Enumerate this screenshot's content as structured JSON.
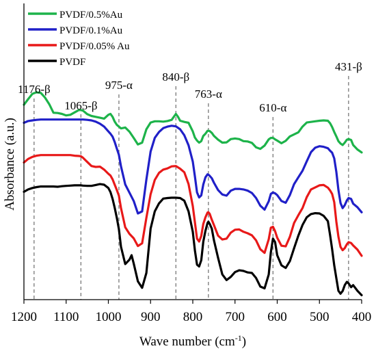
{
  "chart_data": {
    "type": "line",
    "title": "",
    "xlabel": "Wave number (cm",
    "xlabel_sup": "-1",
    "xlabel_close": ")",
    "ylabel": "Absorbance (a.u.)",
    "xlim": [
      1200,
      400
    ],
    "x_reversed": true,
    "x_ticks": [
      1200,
      1100,
      1000,
      900,
      800,
      700,
      600,
      500,
      400
    ],
    "ylim": [
      0,
      1
    ],
    "y_ticks_shown": false,
    "grid": false,
    "legend_position": "top-left",
    "legend_order": [
      "PVDF/0.5%Au",
      "PVDF/0.1%Au",
      "PVDF/0.05% Au",
      "PVDF"
    ],
    "peaks": [
      {
        "x": 1176,
        "label": "1176-β"
      },
      {
        "x": 1065,
        "label": "1065-β"
      },
      {
        "x": 975,
        "label": "975-α"
      },
      {
        "x": 840,
        "label": "840-β"
      },
      {
        "x": 763,
        "label": "763-α"
      },
      {
        "x": 610,
        "label": "610-α"
      },
      {
        "x": 431,
        "label": "431-β"
      }
    ],
    "series": [
      {
        "name": "PVDF/0.5%Au",
        "color": "#1db34a",
        "x": [
          1200,
          1190,
          1180,
          1170,
          1160,
          1150,
          1140,
          1130,
          1120,
          1110,
          1100,
          1090,
          1080,
          1070,
          1065,
          1060,
          1050,
          1040,
          1030,
          1020,
          1010,
          1000,
          995,
          990,
          985,
          980,
          975,
          970,
          960,
          950,
          940,
          930,
          920,
          910,
          900,
          890,
          880,
          870,
          860,
          850,
          845,
          840,
          835,
          830,
          820,
          810,
          800,
          795,
          790,
          785,
          780,
          775,
          770,
          765,
          763,
          760,
          755,
          750,
          740,
          730,
          720,
          710,
          700,
          690,
          680,
          670,
          660,
          650,
          640,
          630,
          620,
          615,
          610,
          605,
          600,
          590,
          580,
          570,
          560,
          550,
          540,
          530,
          520,
          510,
          500,
          490,
          480,
          475,
          470,
          465,
          460,
          455,
          450,
          445,
          440,
          435,
          431,
          425,
          420,
          410,
          400
        ],
        "y": [
          0.658,
          0.677,
          0.695,
          0.7,
          0.698,
          0.682,
          0.66,
          0.631,
          0.63,
          0.627,
          0.622,
          0.624,
          0.632,
          0.64,
          0.64,
          0.638,
          0.626,
          0.62,
          0.617,
          0.614,
          0.611,
          0.624,
          0.627,
          0.617,
          0.601,
          0.59,
          0.584,
          0.578,
          0.581,
          0.567,
          0.546,
          0.524,
          0.53,
          0.575,
          0.598,
          0.602,
          0.602,
          0.601,
          0.603,
          0.607,
          0.617,
          0.627,
          0.617,
          0.604,
          0.6,
          0.597,
          0.568,
          0.547,
          0.537,
          0.53,
          0.535,
          0.553,
          0.56,
          0.57,
          0.57,
          0.569,
          0.563,
          0.553,
          0.54,
          0.53,
          0.531,
          0.542,
          0.544,
          0.542,
          0.535,
          0.534,
          0.529,
          0.514,
          0.509,
          0.52,
          0.541,
          0.546,
          0.546,
          0.541,
          0.537,
          0.528,
          0.536,
          0.551,
          0.558,
          0.565,
          0.584,
          0.598,
          0.6,
          0.602,
          0.604,
          0.605,
          0.604,
          0.596,
          0.583,
          0.566,
          0.551,
          0.535,
          0.527,
          0.522,
          0.53,
          0.54,
          0.542,
          0.539,
          0.522,
          0.507,
          0.497
        ]
      },
      {
        "name": "PVDF/0.1%Au",
        "color": "#2020c8",
        "x": [
          1200,
          1190,
          1180,
          1170,
          1160,
          1150,
          1140,
          1130,
          1120,
          1110,
          1100,
          1090,
          1080,
          1070,
          1065,
          1060,
          1050,
          1040,
          1030,
          1020,
          1010,
          1000,
          995,
          990,
          985,
          980,
          975,
          970,
          960,
          950,
          940,
          930,
          920,
          910,
          900,
          890,
          880,
          870,
          860,
          850,
          840,
          830,
          820,
          810,
          800,
          795,
          790,
          785,
          780,
          775,
          770,
          765,
          763,
          760,
          755,
          750,
          740,
          730,
          720,
          710,
          700,
          690,
          680,
          670,
          660,
          650,
          640,
          630,
          620,
          615,
          610,
          605,
          600,
          590,
          580,
          570,
          560,
          550,
          540,
          530,
          520,
          510,
          500,
          490,
          480,
          475,
          470,
          465,
          460,
          455,
          450,
          445,
          440,
          435,
          431,
          425,
          420,
          410,
          400
        ],
        "y": [
          0.597,
          0.603,
          0.605,
          0.607,
          0.608,
          0.608,
          0.608,
          0.608,
          0.608,
          0.608,
          0.608,
          0.608,
          0.608,
          0.608,
          0.608,
          0.608,
          0.607,
          0.605,
          0.601,
          0.594,
          0.584,
          0.568,
          0.56,
          0.55,
          0.532,
          0.51,
          0.489,
          0.45,
          0.389,
          0.361,
          0.333,
          0.291,
          0.298,
          0.405,
          0.5,
          0.546,
          0.566,
          0.579,
          0.584,
          0.587,
          0.585,
          0.575,
          0.555,
          0.521,
          0.466,
          0.416,
          0.362,
          0.345,
          0.352,
          0.389,
          0.413,
          0.423,
          0.422,
          0.418,
          0.41,
          0.395,
          0.37,
          0.355,
          0.351,
          0.368,
          0.374,
          0.374,
          0.372,
          0.368,
          0.36,
          0.343,
          0.317,
          0.304,
          0.332,
          0.357,
          0.362,
          0.359,
          0.353,
          0.333,
          0.327,
          0.353,
          0.39,
          0.413,
          0.435,
          0.467,
          0.498,
          0.513,
          0.518,
          0.516,
          0.511,
          0.503,
          0.496,
          0.477,
          0.431,
          0.371,
          0.326,
          0.309,
          0.319,
          0.335,
          0.343,
          0.34,
          0.324,
          0.312,
          0.295
        ]
      },
      {
        "name": "PVDF/0.05% Au",
        "color": "#e81919",
        "x": [
          1200,
          1190,
          1180,
          1170,
          1160,
          1150,
          1140,
          1130,
          1120,
          1110,
          1100,
          1090,
          1080,
          1070,
          1065,
          1060,
          1050,
          1040,
          1030,
          1020,
          1010,
          1000,
          995,
          990,
          985,
          980,
          975,
          970,
          960,
          950,
          940,
          930,
          920,
          910,
          900,
          890,
          880,
          870,
          860,
          850,
          840,
          830,
          820,
          810,
          800,
          795,
          790,
          785,
          780,
          775,
          770,
          765,
          763,
          760,
          755,
          750,
          740,
          730,
          720,
          710,
          700,
          690,
          680,
          670,
          660,
          650,
          640,
          630,
          620,
          615,
          610,
          605,
          600,
          590,
          580,
          570,
          560,
          550,
          540,
          530,
          520,
          510,
          500,
          490,
          480,
          475,
          470,
          465,
          460,
          455,
          450,
          445,
          440,
          435,
          431,
          425,
          420,
          410,
          400
        ],
        "y": [
          0.463,
          0.475,
          0.482,
          0.486,
          0.488,
          0.488,
          0.488,
          0.488,
          0.488,
          0.488,
          0.488,
          0.488,
          0.486,
          0.485,
          0.484,
          0.479,
          0.465,
          0.451,
          0.448,
          0.449,
          0.439,
          0.425,
          0.419,
          0.406,
          0.388,
          0.37,
          0.351,
          0.309,
          0.244,
          0.222,
          0.207,
          0.181,
          0.19,
          0.276,
          0.356,
          0.404,
          0.428,
          0.439,
          0.443,
          0.45,
          0.451,
          0.442,
          0.43,
          0.39,
          0.316,
          0.261,
          0.206,
          0.196,
          0.215,
          0.256,
          0.278,
          0.294,
          0.295,
          0.29,
          0.27,
          0.252,
          0.216,
          0.203,
          0.206,
          0.226,
          0.236,
          0.237,
          0.229,
          0.224,
          0.217,
          0.2,
          0.17,
          0.158,
          0.204,
          0.243,
          0.246,
          0.231,
          0.209,
          0.182,
          0.18,
          0.212,
          0.259,
          0.285,
          0.309,
          0.346,
          0.372,
          0.379,
          0.386,
          0.387,
          0.378,
          0.369,
          0.357,
          0.329,
          0.263,
          0.213,
          0.178,
          0.167,
          0.174,
          0.187,
          0.194,
          0.191,
          0.183,
          0.169,
          0.148
        ]
      },
      {
        "name": "PVDF",
        "color": "#000000",
        "x": [
          1200,
          1190,
          1180,
          1170,
          1160,
          1150,
          1140,
          1130,
          1120,
          1110,
          1100,
          1090,
          1080,
          1070,
          1065,
          1060,
          1050,
          1040,
          1030,
          1020,
          1010,
          1000,
          995,
          990,
          985,
          980,
          975,
          970,
          960,
          950,
          945,
          940,
          930,
          920,
          910,
          900,
          890,
          880,
          870,
          860,
          850,
          840,
          830,
          820,
          810,
          800,
          795,
          790,
          785,
          780,
          775,
          770,
          765,
          763,
          760,
          755,
          750,
          740,
          730,
          720,
          710,
          700,
          690,
          680,
          670,
          660,
          650,
          640,
          630,
          620,
          615,
          610,
          605,
          600,
          590,
          580,
          570,
          560,
          550,
          540,
          530,
          520,
          510,
          500,
          490,
          480,
          475,
          470,
          465,
          460,
          455,
          450,
          445,
          440,
          435,
          431,
          425,
          420,
          410,
          400
        ],
        "y": [
          0.364,
          0.372,
          0.377,
          0.38,
          0.382,
          0.382,
          0.382,
          0.382,
          0.381,
          0.383,
          0.384,
          0.385,
          0.386,
          0.386,
          0.386,
          0.385,
          0.384,
          0.384,
          0.387,
          0.39,
          0.388,
          0.377,
          0.363,
          0.34,
          0.31,
          0.276,
          0.238,
          0.178,
          0.12,
          0.135,
          0.15,
          0.122,
          0.062,
          0.04,
          0.09,
          0.24,
          0.298,
          0.325,
          0.341,
          0.343,
          0.344,
          0.344,
          0.343,
          0.334,
          0.298,
          0.229,
          0.166,
          0.118,
          0.112,
          0.133,
          0.196,
          0.232,
          0.259,
          0.263,
          0.256,
          0.24,
          0.201,
          0.141,
          0.085,
          0.066,
          0.077,
          0.093,
          0.099,
          0.097,
          0.092,
          0.09,
          0.073,
          0.044,
          0.038,
          0.085,
          0.16,
          0.206,
          0.194,
          0.15,
          0.116,
          0.107,
          0.13,
          0.174,
          0.216,
          0.252,
          0.278,
          0.289,
          0.292,
          0.291,
          0.283,
          0.265,
          0.22,
          0.171,
          0.116,
          0.072,
          0.03,
          0.02,
          0.029,
          0.049,
          0.06,
          0.055,
          0.042,
          0.049,
          0.03,
          0.015
        ]
      }
    ]
  }
}
